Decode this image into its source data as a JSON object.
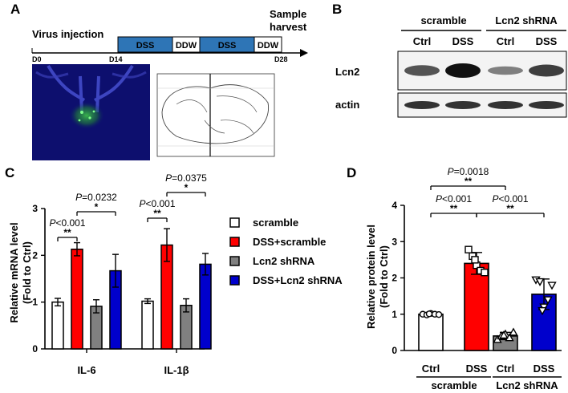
{
  "panels": {
    "a": "A",
    "b": "B",
    "c": "C",
    "d": "D"
  },
  "timeline": {
    "virus_injection": "Virus injection",
    "sample_line1": "Sample",
    "sample_line2": "harvest",
    "ticks": [
      "D0",
      "D14",
      "D28"
    ],
    "blocks": [
      "DSS",
      "DDW",
      "DSS",
      "DDW"
    ],
    "dss_color": "#2e75b6"
  },
  "western": {
    "groups": [
      "scramble",
      "Lcn2 shRNA"
    ],
    "lanes": [
      "Ctrl",
      "DSS",
      "Ctrl",
      "DSS"
    ],
    "rows": [
      "Lcn2",
      "actin"
    ],
    "lcn2_intensity": [
      0.55,
      1.0,
      0.25,
      0.7
    ],
    "actin_intensity": [
      0.75,
      0.75,
      0.75,
      0.75
    ]
  },
  "chart_data": [
    {
      "type": "bar",
      "panel": "C",
      "categories": [
        "IL-6",
        "IL-1β"
      ],
      "ylabel": "Relative mRNA level",
      "ylabel2": "(Fold to Ctrl)",
      "ylim": [
        0,
        3
      ],
      "yticks": [
        "0",
        "1",
        "2",
        "3"
      ],
      "series": [
        {
          "name": "scramble",
          "color": "#ffffff",
          "values": [
            1.0,
            1.02
          ],
          "errors": [
            0.08,
            0.05
          ]
        },
        {
          "name": "DSS+scramble",
          "color": "#ff0000",
          "values": [
            2.13,
            2.22
          ],
          "errors": [
            0.14,
            0.35
          ]
        },
        {
          "name": "Lcn2 shRNA",
          "color": "#808080",
          "values": [
            0.91,
            0.93
          ],
          "errors": [
            0.14,
            0.14
          ]
        },
        {
          "name": "DSS+Lcn2 shRNA",
          "color": "#0000cc",
          "values": [
            1.67,
            1.81
          ],
          "errors": [
            0.35,
            0.23
          ]
        }
      ],
      "annotations": [
        {
          "group": 0,
          "from": 0,
          "to": 1,
          "stars": "**",
          "p_prefix": "P",
          "p_rest": "<0.001"
        },
        {
          "group": 0,
          "from": 1,
          "to": 3,
          "stars": "*",
          "p_prefix": "P",
          "p_rest": "=0.0232"
        },
        {
          "group": 1,
          "from": 0,
          "to": 1,
          "stars": "**",
          "p_prefix": "P",
          "p_rest": "<0.001"
        },
        {
          "group": 1,
          "from": 1,
          "to": 3,
          "stars": "*",
          "p_prefix": "P",
          "p_rest": "=0.0375"
        }
      ]
    },
    {
      "type": "bar",
      "panel": "D",
      "categories": [
        "Ctrl",
        "DSS",
        "Ctrl",
        "DSS"
      ],
      "groups": [
        "scramble",
        "Lcn2 shRNA"
      ],
      "ylabel": "Relative protein level",
      "ylabel2": "(Fold to Ctrl)",
      "ylim": [
        0,
        4
      ],
      "yticks": [
        "0",
        "1",
        "2",
        "3",
        "4"
      ],
      "values": [
        1.0,
        2.4,
        0.4,
        1.55
      ],
      "errors": [
        0.04,
        0.3,
        0.1,
        0.42
      ],
      "colors": [
        "#ffffff",
        "#ff0000",
        "#808080",
        "#0000cc"
      ],
      "markers": [
        "circle",
        "square",
        "triangle-up",
        "triangle-down"
      ],
      "points": [
        [
          1.0,
          0.98,
          1.02,
          1.0,
          0.99,
          1.01
        ],
        [
          2.78,
          2.6,
          2.35,
          2.2,
          2.15,
          2.5
        ],
        [
          0.3,
          0.4,
          0.45,
          0.35,
          0.5,
          0.42
        ],
        [
          1.95,
          1.9,
          1.2,
          1.4,
          1.8,
          1.1
        ]
      ],
      "annotations": [
        {
          "from": 0,
          "to": 1,
          "stars": "**",
          "p_prefix": "P",
          "p_rest": "<0.001"
        },
        {
          "from": 1,
          "to": 3,
          "stars": "**",
          "p_prefix": "P",
          "p_rest": "<0.001"
        },
        {
          "from": 0,
          "to": 2,
          "stars": "**",
          "p_prefix": "P",
          "p_rest": "=0.0018"
        }
      ]
    }
  ]
}
